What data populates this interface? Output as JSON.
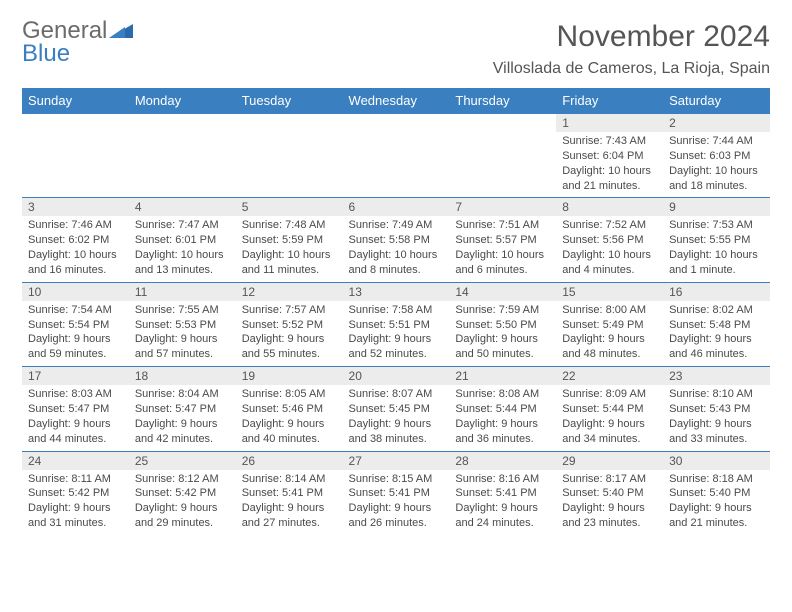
{
  "logo": {
    "line1": "General",
    "line2": "Blue"
  },
  "header": {
    "month_title": "November 2024",
    "location": "Villoslada de Cameros, La Rioja, Spain"
  },
  "colors": {
    "accent": "#3a7fbf",
    "header_bg": "#3a7fbf",
    "daynum_bg": "#ececec",
    "text": "#4a4a4a",
    "title_text": "#555555"
  },
  "typography": {
    "title_fontsize": 30,
    "location_fontsize": 16,
    "dayhead_fontsize": 13,
    "daynum_fontsize": 12,
    "detail_fontsize": 11
  },
  "day_headers": [
    "Sunday",
    "Monday",
    "Tuesday",
    "Wednesday",
    "Thursday",
    "Friday",
    "Saturday"
  ],
  "weeks": [
    {
      "nums": [
        "",
        "",
        "",
        "",
        "",
        "1",
        "2"
      ],
      "details": [
        "",
        "",
        "",
        "",
        "",
        "Sunrise: 7:43 AM\nSunset: 6:04 PM\nDaylight: 10 hours and 21 minutes.",
        "Sunrise: 7:44 AM\nSunset: 6:03 PM\nDaylight: 10 hours and 18 minutes."
      ]
    },
    {
      "nums": [
        "3",
        "4",
        "5",
        "6",
        "7",
        "8",
        "9"
      ],
      "details": [
        "Sunrise: 7:46 AM\nSunset: 6:02 PM\nDaylight: 10 hours and 16 minutes.",
        "Sunrise: 7:47 AM\nSunset: 6:01 PM\nDaylight: 10 hours and 13 minutes.",
        "Sunrise: 7:48 AM\nSunset: 5:59 PM\nDaylight: 10 hours and 11 minutes.",
        "Sunrise: 7:49 AM\nSunset: 5:58 PM\nDaylight: 10 hours and 8 minutes.",
        "Sunrise: 7:51 AM\nSunset: 5:57 PM\nDaylight: 10 hours and 6 minutes.",
        "Sunrise: 7:52 AM\nSunset: 5:56 PM\nDaylight: 10 hours and 4 minutes.",
        "Sunrise: 7:53 AM\nSunset: 5:55 PM\nDaylight: 10 hours and 1 minute."
      ]
    },
    {
      "nums": [
        "10",
        "11",
        "12",
        "13",
        "14",
        "15",
        "16"
      ],
      "details": [
        "Sunrise: 7:54 AM\nSunset: 5:54 PM\nDaylight: 9 hours and 59 minutes.",
        "Sunrise: 7:55 AM\nSunset: 5:53 PM\nDaylight: 9 hours and 57 minutes.",
        "Sunrise: 7:57 AM\nSunset: 5:52 PM\nDaylight: 9 hours and 55 minutes.",
        "Sunrise: 7:58 AM\nSunset: 5:51 PM\nDaylight: 9 hours and 52 minutes.",
        "Sunrise: 7:59 AM\nSunset: 5:50 PM\nDaylight: 9 hours and 50 minutes.",
        "Sunrise: 8:00 AM\nSunset: 5:49 PM\nDaylight: 9 hours and 48 minutes.",
        "Sunrise: 8:02 AM\nSunset: 5:48 PM\nDaylight: 9 hours and 46 minutes."
      ]
    },
    {
      "nums": [
        "17",
        "18",
        "19",
        "20",
        "21",
        "22",
        "23"
      ],
      "details": [
        "Sunrise: 8:03 AM\nSunset: 5:47 PM\nDaylight: 9 hours and 44 minutes.",
        "Sunrise: 8:04 AM\nSunset: 5:47 PM\nDaylight: 9 hours and 42 minutes.",
        "Sunrise: 8:05 AM\nSunset: 5:46 PM\nDaylight: 9 hours and 40 minutes.",
        "Sunrise: 8:07 AM\nSunset: 5:45 PM\nDaylight: 9 hours and 38 minutes.",
        "Sunrise: 8:08 AM\nSunset: 5:44 PM\nDaylight: 9 hours and 36 minutes.",
        "Sunrise: 8:09 AM\nSunset: 5:44 PM\nDaylight: 9 hours and 34 minutes.",
        "Sunrise: 8:10 AM\nSunset: 5:43 PM\nDaylight: 9 hours and 33 minutes."
      ]
    },
    {
      "nums": [
        "24",
        "25",
        "26",
        "27",
        "28",
        "29",
        "30"
      ],
      "details": [
        "Sunrise: 8:11 AM\nSunset: 5:42 PM\nDaylight: 9 hours and 31 minutes.",
        "Sunrise: 8:12 AM\nSunset: 5:42 PM\nDaylight: 9 hours and 29 minutes.",
        "Sunrise: 8:14 AM\nSunset: 5:41 PM\nDaylight: 9 hours and 27 minutes.",
        "Sunrise: 8:15 AM\nSunset: 5:41 PM\nDaylight: 9 hours and 26 minutes.",
        "Sunrise: 8:16 AM\nSunset: 5:41 PM\nDaylight: 9 hours and 24 minutes.",
        "Sunrise: 8:17 AM\nSunset: 5:40 PM\nDaylight: 9 hours and 23 minutes.",
        "Sunrise: 8:18 AM\nSunset: 5:40 PM\nDaylight: 9 hours and 21 minutes."
      ]
    }
  ]
}
